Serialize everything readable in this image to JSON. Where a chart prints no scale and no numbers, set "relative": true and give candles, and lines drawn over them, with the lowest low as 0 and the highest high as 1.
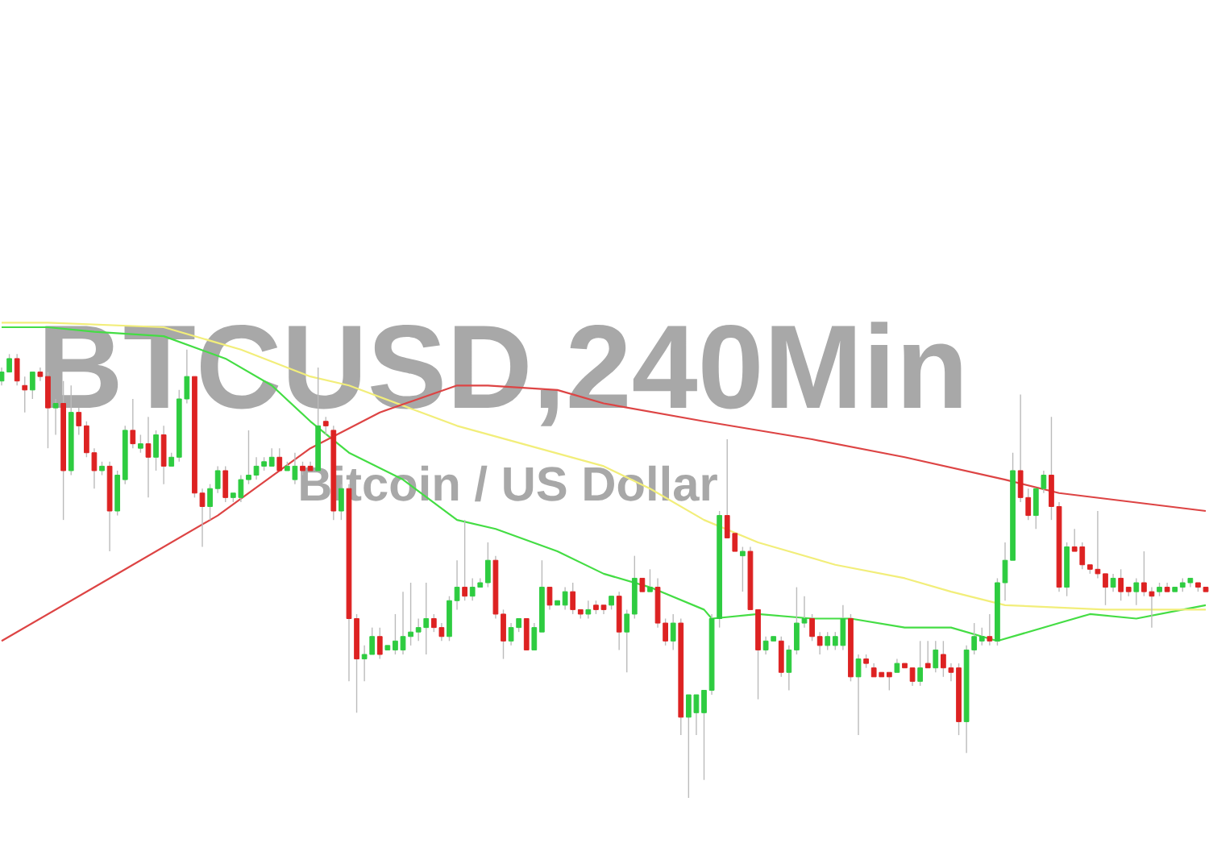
{
  "chart_data": {
    "type": "candlestick",
    "title": "BTCUSD,240Min",
    "subtitle": "Bitcoin / US Dollar",
    "relative": true,
    "categories": [
      null,
      null,
      null,
      null,
      null,
      null,
      null,
      null,
      null,
      null,
      null,
      null,
      null,
      null,
      null,
      null,
      null,
      null,
      null,
      null,
      null,
      null,
      null,
      null,
      null,
      null,
      null,
      null,
      null,
      null,
      null,
      null,
      null,
      null,
      null,
      null,
      null,
      null,
      null,
      null,
      null,
      null,
      null,
      null,
      null,
      null,
      null,
      null,
      null,
      null,
      null,
      null,
      null,
      null,
      null,
      null,
      null,
      null,
      null,
      null,
      null,
      null,
      null,
      null,
      null,
      null,
      null,
      null,
      null,
      null,
      null,
      null,
      null,
      null,
      null,
      null,
      null,
      null,
      null,
      null,
      null,
      null,
      null,
      null,
      null,
      null,
      null,
      null,
      null,
      null,
      null,
      null,
      null,
      null,
      null,
      null,
      null,
      null,
      null,
      null,
      null,
      null,
      null,
      null,
      null,
      null,
      null,
      null,
      null,
      null,
      null,
      null,
      null,
      null,
      null,
      null,
      null,
      null,
      null,
      null,
      null,
      null,
      null,
      null,
      null,
      null,
      null,
      null,
      null,
      null,
      null,
      null,
      null,
      null,
      null,
      null,
      null,
      null,
      null,
      null,
      null,
      null,
      null,
      null,
      null,
      null,
      null,
      null,
      null,
      null,
      null,
      null,
      null,
      null,
      null,
      null,
      null
    ],
    "ohlc": [
      [
        0.93,
        0.96,
        0.92,
        0.95
      ],
      [
        0.95,
        0.99,
        0.95,
        0.98
      ],
      [
        0.98,
        0.99,
        0.92,
        0.93
      ],
      [
        0.92,
        0.94,
        0.86,
        0.91
      ],
      [
        0.91,
        0.95,
        0.89,
        0.95
      ],
      [
        0.95,
        0.96,
        0.93,
        0.94
      ],
      [
        0.94,
        0.95,
        0.78,
        0.87
      ],
      [
        0.87,
        0.89,
        0.81,
        0.88
      ],
      [
        0.88,
        0.93,
        0.62,
        0.73
      ],
      [
        0.73,
        0.92,
        0.72,
        0.86
      ],
      [
        0.86,
        0.87,
        0.81,
        0.83
      ],
      [
        0.83,
        0.84,
        0.76,
        0.77
      ],
      [
        0.77,
        0.78,
        0.69,
        0.73
      ],
      [
        0.73,
        0.75,
        0.72,
        0.74
      ],
      [
        0.74,
        0.75,
        0.55,
        0.64
      ],
      [
        0.64,
        0.73,
        0.63,
        0.72
      ],
      [
        0.71,
        0.83,
        0.7,
        0.82
      ],
      [
        0.82,
        0.89,
        0.78,
        0.79
      ],
      [
        0.78,
        0.81,
        0.77,
        0.79
      ],
      [
        0.79,
        0.85,
        0.67,
        0.76
      ],
      [
        0.76,
        0.82,
        0.73,
        0.81
      ],
      [
        0.81,
        0.83,
        0.7,
        0.74
      ],
      [
        0.74,
        0.77,
        0.74,
        0.76
      ],
      [
        0.76,
        0.91,
        0.75,
        0.89
      ],
      [
        0.89,
        1.0,
        0.88,
        0.94
      ],
      [
        0.94,
        0.94,
        0.67,
        0.68
      ],
      [
        0.68,
        0.69,
        0.56,
        0.65
      ],
      [
        0.65,
        0.7,
        0.62,
        0.69
      ],
      [
        0.69,
        0.74,
        0.68,
        0.73
      ],
      [
        0.73,
        0.74,
        0.66,
        0.67
      ],
      [
        0.67,
        0.68,
        0.66,
        0.68
      ],
      [
        0.67,
        0.72,
        0.66,
        0.71
      ],
      [
        0.71,
        0.82,
        0.7,
        0.72
      ],
      [
        0.72,
        0.76,
        0.71,
        0.74
      ],
      [
        0.74,
        0.76,
        0.73,
        0.75
      ],
      [
        0.74,
        0.78,
        0.74,
        0.76
      ],
      [
        0.76,
        0.78,
        0.73,
        0.73
      ],
      [
        0.73,
        0.75,
        0.73,
        0.74
      ],
      [
        0.71,
        0.77,
        0.7,
        0.74
      ],
      [
        0.74,
        0.75,
        0.72,
        0.73
      ],
      [
        0.74,
        0.75,
        0.73,
        0.73
      ],
      [
        0.73,
        0.96,
        0.73,
        0.83
      ],
      [
        0.84,
        0.85,
        0.81,
        0.83
      ],
      [
        0.82,
        0.83,
        0.62,
        0.64
      ],
      [
        0.64,
        0.7,
        0.62,
        0.69
      ],
      [
        0.69,
        0.7,
        0.26,
        0.4
      ],
      [
        0.4,
        0.41,
        0.19,
        0.31
      ],
      [
        0.31,
        0.34,
        0.26,
        0.32
      ],
      [
        0.32,
        0.38,
        0.32,
        0.36
      ],
      [
        0.36,
        0.38,
        0.31,
        0.32
      ],
      [
        0.33,
        0.34,
        0.33,
        0.34
      ],
      [
        0.33,
        0.41,
        0.32,
        0.35
      ],
      [
        0.33,
        0.46,
        0.32,
        0.36
      ],
      [
        0.36,
        0.48,
        0.34,
        0.37
      ],
      [
        0.37,
        0.4,
        0.35,
        0.38
      ],
      [
        0.38,
        0.48,
        0.32,
        0.4
      ],
      [
        0.4,
        0.41,
        0.37,
        0.38
      ],
      [
        0.38,
        0.39,
        0.35,
        0.36
      ],
      [
        0.36,
        0.45,
        0.35,
        0.44
      ],
      [
        0.44,
        0.53,
        0.42,
        0.47
      ],
      [
        0.47,
        0.62,
        0.44,
        0.45
      ],
      [
        0.45,
        0.49,
        0.44,
        0.47
      ],
      [
        0.47,
        0.49,
        0.47,
        0.48
      ],
      [
        0.48,
        0.57,
        0.47,
        0.53
      ],
      [
        0.53,
        0.54,
        0.4,
        0.41
      ],
      [
        0.41,
        0.42,
        0.31,
        0.35
      ],
      [
        0.35,
        0.39,
        0.34,
        0.38
      ],
      [
        0.38,
        0.4,
        0.37,
        0.4
      ],
      [
        0.4,
        0.4,
        0.33,
        0.33
      ],
      [
        0.33,
        0.39,
        0.33,
        0.38
      ],
      [
        0.37,
        0.53,
        0.37,
        0.47
      ],
      [
        0.47,
        0.47,
        0.42,
        0.43
      ],
      [
        0.43,
        0.44,
        0.43,
        0.44
      ],
      [
        0.43,
        0.47,
        0.42,
        0.46
      ],
      [
        0.46,
        0.48,
        0.41,
        0.42
      ],
      [
        0.42,
        0.42,
        0.4,
        0.41
      ],
      [
        0.41,
        0.44,
        0.4,
        0.42
      ],
      [
        0.43,
        0.44,
        0.41,
        0.42
      ],
      [
        0.43,
        0.43,
        0.41,
        0.42
      ],
      [
        0.43,
        0.45,
        0.42,
        0.45
      ],
      [
        0.45,
        0.46,
        0.33,
        0.37
      ],
      [
        0.37,
        0.42,
        0.28,
        0.41
      ],
      [
        0.41,
        0.54,
        0.4,
        0.49
      ],
      [
        0.49,
        0.49,
        0.46,
        0.46
      ],
      [
        0.46,
        0.51,
        0.46,
        0.47
      ],
      [
        0.47,
        0.49,
        0.38,
        0.39
      ],
      [
        0.39,
        0.4,
        0.34,
        0.35
      ],
      [
        0.35,
        0.41,
        0.33,
        0.39
      ],
      [
        0.39,
        0.4,
        0.14,
        0.18
      ],
      [
        0.18,
        0.23,
        0.0,
        0.23
      ],
      [
        0.19,
        0.23,
        0.14,
        0.23
      ],
      [
        0.19,
        0.24,
        0.04,
        0.24
      ],
      [
        0.24,
        0.41,
        0.23,
        0.4
      ],
      [
        0.4,
        0.64,
        0.38,
        0.63
      ],
      [
        0.63,
        0.8,
        0.58,
        0.58
      ],
      [
        0.59,
        0.59,
        0.55,
        0.55
      ],
      [
        0.54,
        0.56,
        0.46,
        0.55
      ],
      [
        0.55,
        0.56,
        0.42,
        0.42
      ],
      [
        0.42,
        0.42,
        0.22,
        0.33
      ],
      [
        0.33,
        0.36,
        0.32,
        0.35
      ],
      [
        0.35,
        0.36,
        0.35,
        0.36
      ],
      [
        0.35,
        0.36,
        0.27,
        0.28
      ],
      [
        0.28,
        0.34,
        0.24,
        0.33
      ],
      [
        0.33,
        0.47,
        0.32,
        0.39
      ],
      [
        0.39,
        0.45,
        0.38,
        0.4
      ],
      [
        0.4,
        0.41,
        0.35,
        0.36
      ],
      [
        0.36,
        0.37,
        0.32,
        0.34
      ],
      [
        0.34,
        0.37,
        0.33,
        0.36
      ],
      [
        0.34,
        0.37,
        0.33,
        0.36
      ],
      [
        0.34,
        0.43,
        0.33,
        0.4
      ],
      [
        0.4,
        0.41,
        0.26,
        0.27
      ],
      [
        0.27,
        0.32,
        0.14,
        0.31
      ],
      [
        0.31,
        0.32,
        0.29,
        0.3
      ],
      [
        0.29,
        0.3,
        0.27,
        0.27
      ],
      [
        0.28,
        0.28,
        0.27,
        0.27
      ],
      [
        0.28,
        0.28,
        0.24,
        0.27
      ],
      [
        0.28,
        0.31,
        0.28,
        0.3
      ],
      [
        0.3,
        0.3,
        0.29,
        0.29
      ],
      [
        0.29,
        0.29,
        0.25,
        0.26
      ],
      [
        0.26,
        0.35,
        0.25,
        0.29
      ],
      [
        0.3,
        0.35,
        0.29,
        0.29
      ],
      [
        0.29,
        0.35,
        0.28,
        0.33
      ],
      [
        0.32,
        0.35,
        0.27,
        0.29
      ],
      [
        0.29,
        0.3,
        0.26,
        0.28
      ],
      [
        0.29,
        0.3,
        0.14,
        0.17
      ],
      [
        0.17,
        0.34,
        0.1,
        0.33
      ],
      [
        0.33,
        0.39,
        0.32,
        0.36
      ],
      [
        0.35,
        0.38,
        0.34,
        0.36
      ],
      [
        0.36,
        0.41,
        0.34,
        0.35
      ],
      [
        0.35,
        0.49,
        0.34,
        0.48
      ],
      [
        0.48,
        0.57,
        0.44,
        0.53
      ],
      [
        0.53,
        0.77,
        0.53,
        0.73
      ],
      [
        0.73,
        0.9,
        0.66,
        0.67
      ],
      [
        0.67,
        0.69,
        0.62,
        0.63
      ],
      [
        0.63,
        0.69,
        0.6,
        0.69
      ],
      [
        0.69,
        0.73,
        0.68,
        0.72
      ],
      [
        0.72,
        0.85,
        0.62,
        0.65
      ],
      [
        0.65,
        0.66,
        0.46,
        0.47
      ],
      [
        0.47,
        0.57,
        0.45,
        0.56
      ],
      [
        0.56,
        0.6,
        0.55,
        0.55
      ],
      [
        0.56,
        0.57,
        0.51,
        0.52
      ],
      [
        0.52,
        0.52,
        0.5,
        0.51
      ],
      [
        0.51,
        0.64,
        0.49,
        0.5
      ],
      [
        0.5,
        0.5,
        0.43,
        0.47
      ],
      [
        0.47,
        0.5,
        0.46,
        0.49
      ],
      [
        0.49,
        0.51,
        0.44,
        0.46
      ],
      [
        0.47,
        0.47,
        0.45,
        0.46
      ],
      [
        0.46,
        0.49,
        0.43,
        0.48
      ],
      [
        0.48,
        0.55,
        0.45,
        0.46
      ],
      [
        0.46,
        0.47,
        0.38,
        0.45
      ],
      [
        0.46,
        0.48,
        0.45,
        0.47
      ],
      [
        0.47,
        0.48,
        0.46,
        0.46
      ],
      [
        0.46,
        0.47,
        0.46,
        0.47
      ],
      [
        0.47,
        0.49,
        0.46,
        0.48
      ],
      [
        0.48,
        0.49,
        0.47,
        0.49
      ],
      [
        0.48,
        0.48,
        0.46,
        0.47
      ],
      [
        0.47,
        0.47,
        0.46,
        0.46
      ]
    ],
    "series": [
      {
        "type": "line",
        "color": "#44dd44",
        "values": [
          1.05,
          null,
          null,
          null,
          null,
          null,
          1.05,
          null,
          null,
          null,
          null,
          null,
          1.04,
          null,
          null,
          null,
          null,
          null,
          null,
          null,
          null,
          1.03,
          null,
          null,
          null,
          null,
          null,
          null,
          null,
          0.98,
          null,
          null,
          null,
          null,
          null,
          0.92,
          null,
          null,
          null,
          null,
          0.84,
          null,
          null,
          null,
          null,
          0.77,
          null,
          null,
          null,
          null,
          null,
          null,
          0.71,
          null,
          null,
          null,
          null,
          null,
          null,
          0.62,
          null,
          null,
          null,
          null,
          0.6,
          null,
          null,
          null,
          null,
          null,
          null,
          null,
          0.55,
          null,
          null,
          null,
          null,
          null,
          0.5,
          null,
          null,
          null,
          null,
          null,
          0.47,
          null,
          null,
          null,
          null,
          null,
          null,
          0.42,
          0.4,
          null,
          null,
          null,
          null,
          null,
          0.41,
          null,
          null,
          null,
          null,
          null,
          null,
          0.4,
          null,
          null,
          null,
          null,
          0.4,
          null,
          null,
          null,
          null,
          null,
          null,
          0.38,
          null,
          null,
          null,
          null,
          null,
          0.38,
          null,
          null,
          null,
          null,
          null,
          0.35,
          null,
          null,
          null,
          null,
          null,
          null,
          null,
          0.39,
          null,
          null,
          null,
          0.41,
          null,
          null,
          null,
          null,
          null,
          0.4,
          null,
          null,
          null,
          null,
          null,
          null,
          null,
          null,
          0.43
        ]
      },
      {
        "type": "line",
        "color": "#f2ee7a",
        "values": [
          1.06,
          null,
          null,
          null,
          null,
          null,
          1.06,
          null,
          null,
          null,
          null,
          null,
          null,
          null,
          null,
          null,
          null,
          null,
          null,
          null,
          null,
          1.05,
          null,
          null,
          null,
          null,
          null,
          null,
          null,
          null,
          null,
          1.0,
          null,
          null,
          null,
          null,
          null,
          null,
          null,
          null,
          0.94,
          null,
          null,
          null,
          null,
          0.92,
          null,
          null,
          null,
          null,
          null,
          null,
          null,
          null,
          null,
          null,
          null,
          null,
          null,
          0.83,
          null,
          null,
          null,
          null,
          null,
          null,
          null,
          null,
          null,
          null,
          null,
          null,
          null,
          null,
          null,
          null,
          null,
          null,
          0.74,
          null,
          null,
          null,
          null,
          null,
          0.69,
          null,
          null,
          null,
          null,
          null,
          null,
          0.62,
          null,
          null,
          null,
          null,
          null,
          null,
          0.57,
          null,
          null,
          null,
          null,
          null,
          null,
          null,
          null,
          null,
          0.52,
          null,
          null,
          null,
          null,
          null,
          null,
          null,
          null,
          0.49,
          null,
          null,
          null,
          null,
          null,
          0.46,
          null,
          null,
          null,
          null,
          null,
          null,
          0.43,
          null,
          null,
          null,
          null,
          null,
          null,
          null,
          null,
          null,
          null,
          null,
          null,
          0.42,
          null,
          null,
          null,
          null,
          null,
          null,
          null,
          null,
          null,
          null,
          null,
          null,
          0.42
        ]
      },
      {
        "type": "line",
        "color": "#dd4444",
        "values": [
          0.35,
          null,
          null,
          null,
          null,
          null,
          null,
          null,
          null,
          null,
          null,
          null,
          null,
          null,
          0.49,
          null,
          null,
          null,
          null,
          null,
          null,
          null,
          null,
          null,
          null,
          null,
          null,
          null,
          0.63,
          null,
          null,
          null,
          null,
          null,
          null,
          null,
          null,
          null,
          null,
          null,
          0.78,
          null,
          null,
          null,
          null,
          null,
          null,
          null,
          null,
          0.86,
          null,
          null,
          null,
          null,
          null,
          null,
          null,
          null,
          null,
          0.92,
          null,
          null,
          null,
          0.92,
          null,
          null,
          null,
          null,
          null,
          null,
          null,
          null,
          0.91,
          null,
          null,
          null,
          null,
          null,
          0.88,
          null,
          null,
          null,
          null,
          null,
          null,
          null,
          null,
          null,
          null,
          null,
          null,
          0.84,
          null,
          null,
          null,
          null,
          null,
          null,
          null,
          null,
          null,
          null,
          null,
          null,
          null,
          0.8,
          null,
          null,
          null,
          null,
          null,
          null,
          null,
          null,
          null,
          null,
          null,
          0.76,
          null,
          null,
          null,
          null,
          null,
          null,
          null,
          null,
          null,
          null,
          null,
          null,
          0.71,
          null,
          null,
          null,
          null,
          null,
          null,
          0.68,
          null,
          null,
          null,
          null,
          null,
          null,
          null,
          null,
          null,
          null,
          null,
          null,
          null,
          null,
          null,
          null,
          null,
          null,
          0.64
        ]
      }
    ]
  }
}
